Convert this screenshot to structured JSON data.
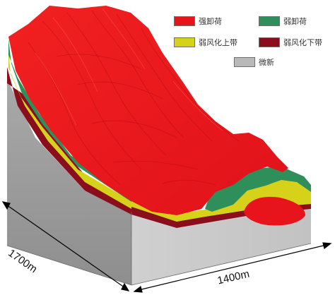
{
  "legend": [
    {
      "label": "强卸荷",
      "color": "#e8141b"
    },
    {
      "label": "弱卸荷",
      "color": "#2f8f5a"
    },
    {
      "label": "弱风化上带",
      "color": "#d6d21a"
    },
    {
      "label": "弱风化下带",
      "color": "#8a0e1c"
    },
    {
      "label": "微新",
      "color": "#b9b9b9"
    }
  ],
  "dimensions": {
    "left_edge": "1700m",
    "front_edge": "1400m"
  }
}
